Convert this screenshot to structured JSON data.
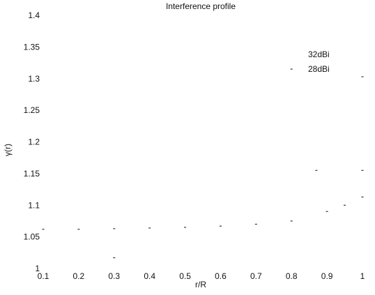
{
  "chart_data": {
    "type": "scatter",
    "title": "Interference profile",
    "xlabel": "r/R",
    "ylabel": "γ(r)",
    "xlim": [
      0.1,
      1
    ],
    "ylim": [
      1,
      1.4
    ],
    "xticks": [
      "0.1",
      "0.2",
      "0.3",
      "0.4",
      "0.5",
      "0.6",
      "0.7",
      "0.8",
      "0.9",
      "1"
    ],
    "yticks": [
      "1",
      "1.05",
      "1.1",
      "1.15",
      "1.2",
      "1.25",
      "1.3",
      "1.35",
      "1.4"
    ],
    "grid": false,
    "legend_position": "top-right",
    "series": [
      {
        "name": "32dBi",
        "color": "#333333",
        "x": [
          0.1,
          0.2,
          0.3,
          0.4,
          0.5,
          0.6,
          0.7,
          0.8,
          0.9,
          0.95,
          1.0
        ],
        "y": [
          1.062,
          1.062,
          1.063,
          1.064,
          1.065,
          1.067,
          1.07,
          1.075,
          1.09,
          1.1,
          1.113
        ]
      },
      {
        "name": "28dBi",
        "color": "#333333",
        "x": [
          0.3,
          0.8,
          0.87,
          1.0,
          1.0
        ],
        "y": [
          1.017,
          1.315,
          1.155,
          1.155,
          1.303
        ]
      }
    ]
  }
}
